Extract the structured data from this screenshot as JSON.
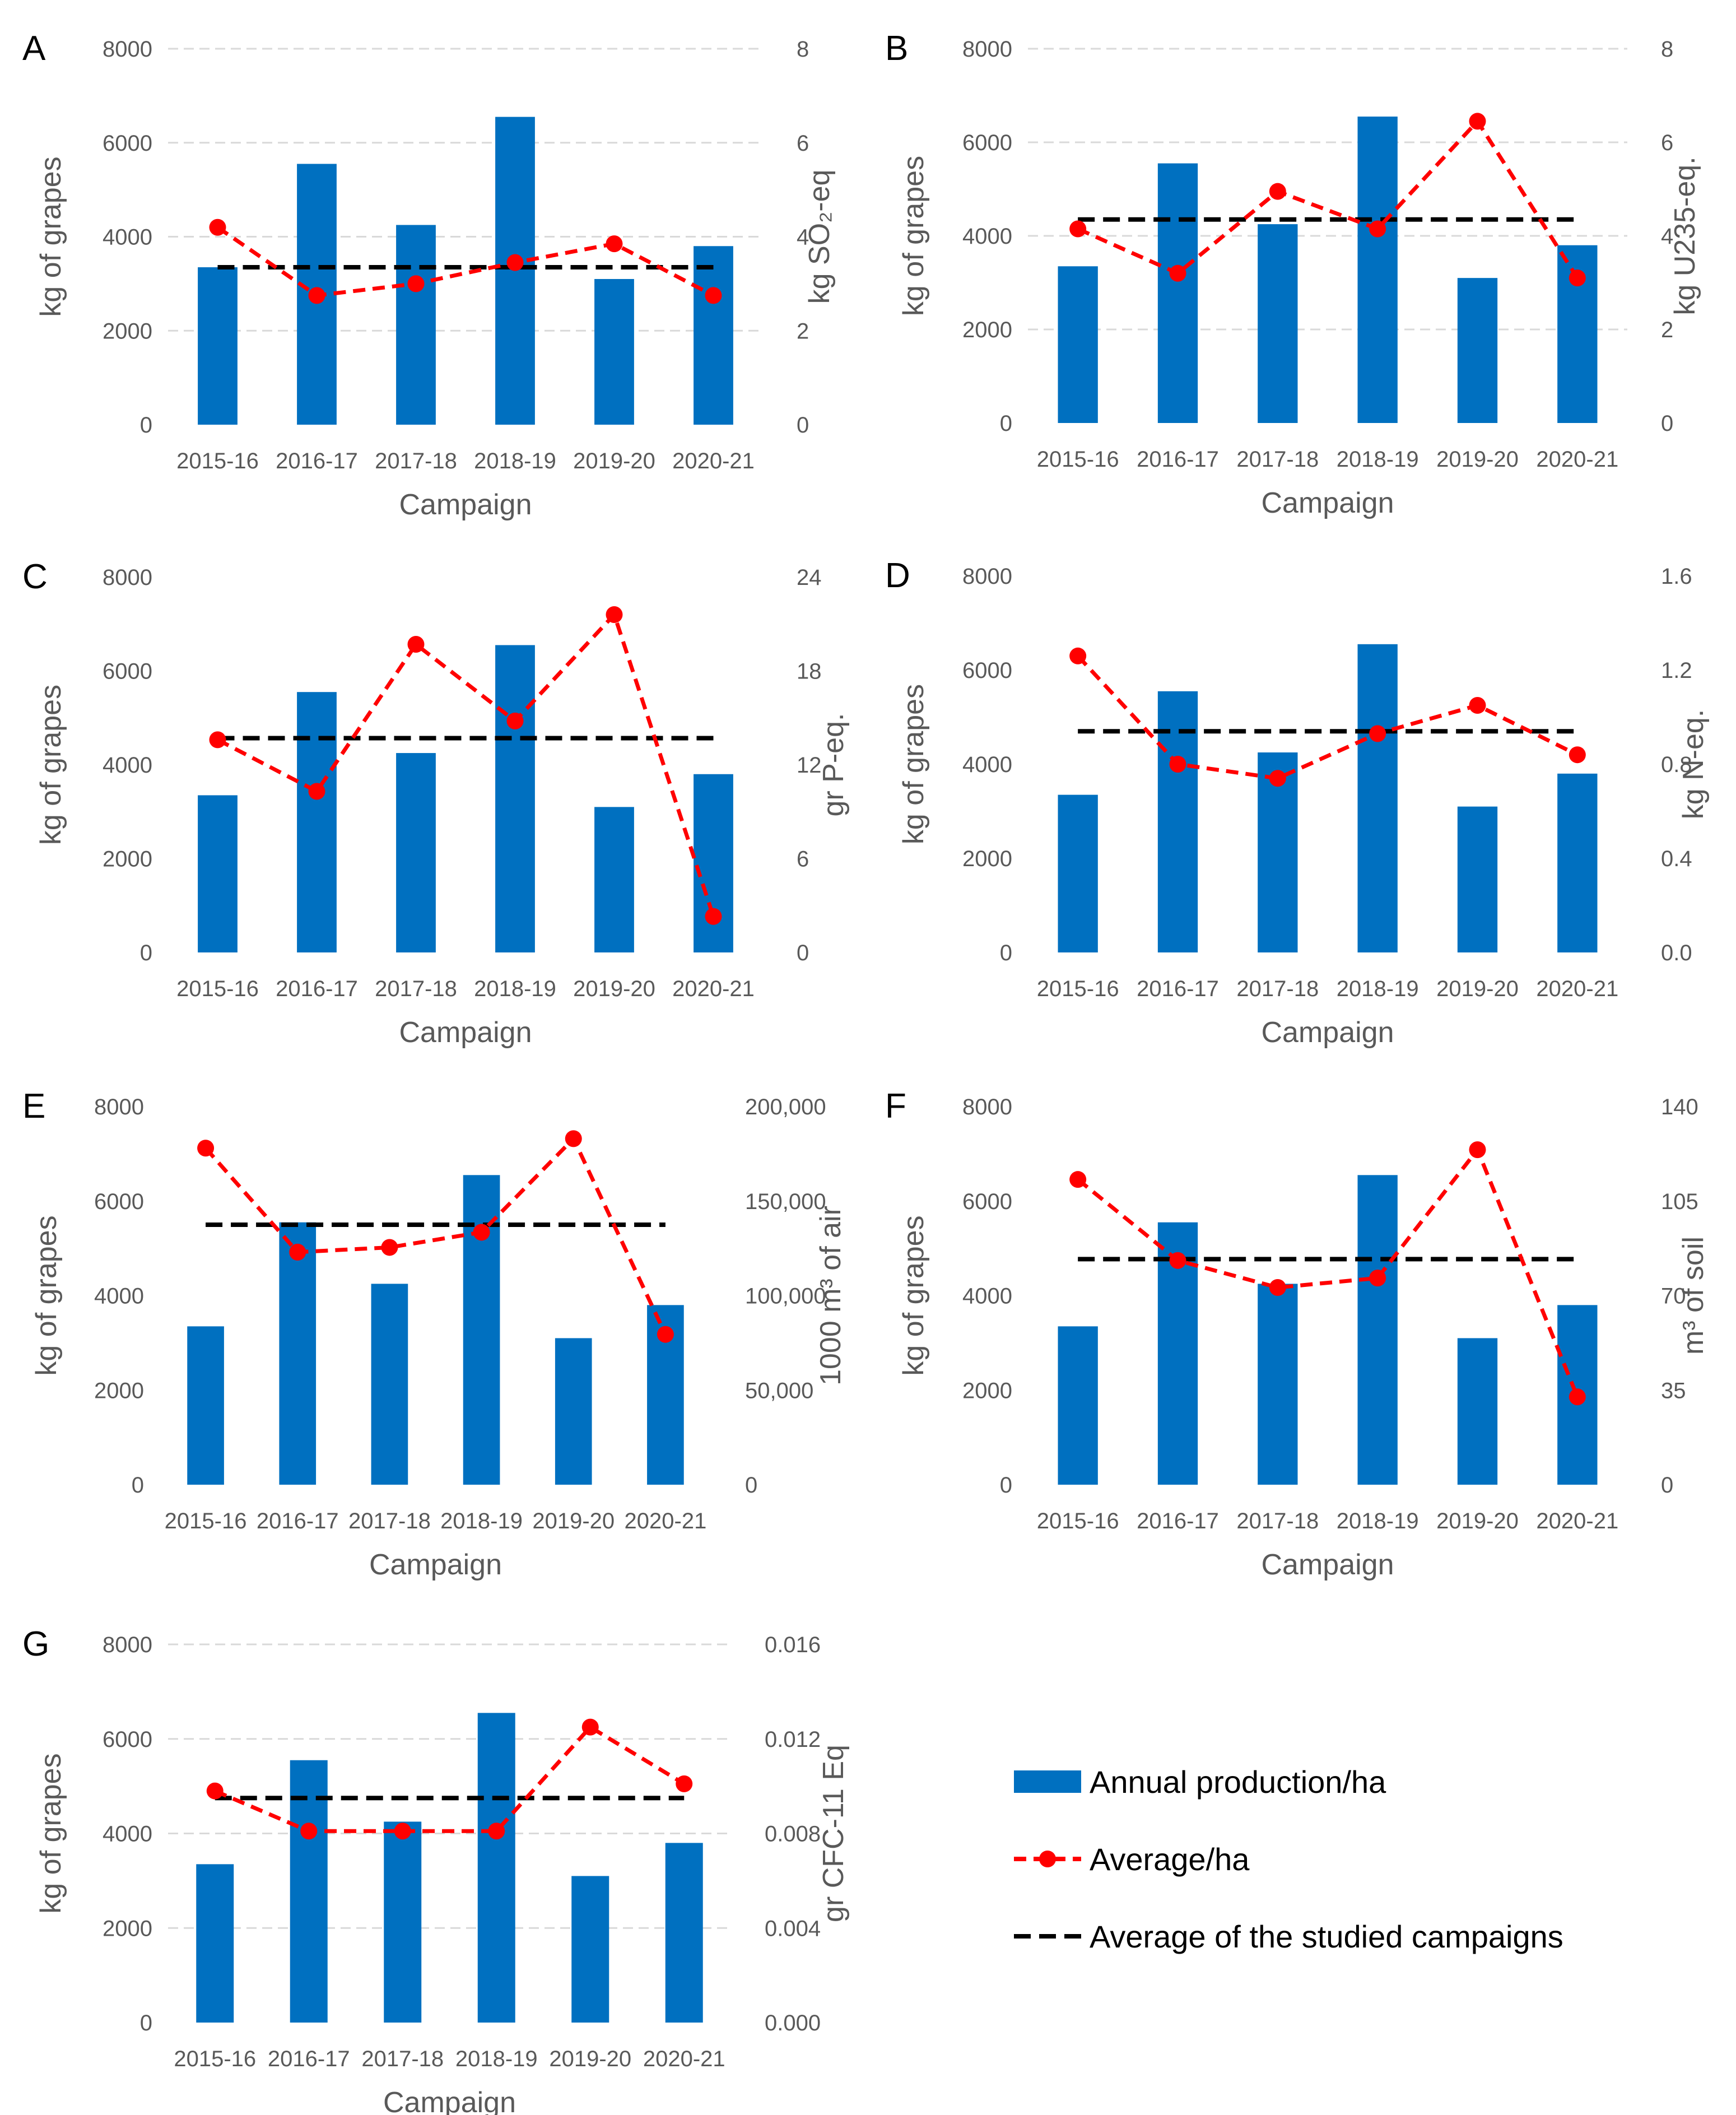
{
  "colors": {
    "bar": "#0070C0",
    "average": "#FF0000",
    "overall": "#000000",
    "grid": "#D9D9D9",
    "text": "#595959"
  },
  "legend": {
    "annual_production": "Annual production/ha",
    "average": "Average/ha",
    "overall_average": "Average of the studied campaigns"
  },
  "chart_data": [
    {
      "panel": "A",
      "type": "bar",
      "categories": [
        "2015-16",
        "2016-17",
        "2017-18",
        "2018-19",
        "2019-20",
        "2020-21"
      ],
      "xlabel": "Campaign",
      "ylabel": "kg of grapes",
      "y2label": "kg SO₂-eq",
      "ylim": [
        0,
        8000
      ],
      "yticks": [
        "0",
        "2000",
        "4000",
        "6000",
        "8000"
      ],
      "y2lim": [
        0,
        8
      ],
      "y2ticks": [
        "0",
        "2",
        "4",
        "6",
        "8"
      ],
      "grid": true,
      "series": [
        {
          "name": "Annual production/ha",
          "type": "bar",
          "axis": "left",
          "values": [
            3350,
            5550,
            4250,
            6550,
            3100,
            3800
          ]
        },
        {
          "name": "Average/ha",
          "type": "line",
          "axis": "right",
          "values": [
            4.2,
            2.75,
            3.0,
            3.45,
            3.85,
            2.75
          ]
        },
        {
          "name": "Average of the studied campaigns",
          "type": "hline",
          "axis": "right",
          "value": 3.35
        }
      ]
    },
    {
      "panel": "B",
      "type": "bar",
      "categories": [
        "2015-16",
        "2016-17",
        "2017-18",
        "2018-19",
        "2019-20",
        "2020-21"
      ],
      "xlabel": "Campaign",
      "ylabel": "kg of grapes",
      "y2label": "kg U235-eq.",
      "ylim": [
        0,
        8000
      ],
      "yticks": [
        "0",
        "2000",
        "4000",
        "6000",
        "8000"
      ],
      "y2lim": [
        0,
        8
      ],
      "y2ticks": [
        "0",
        "2",
        "4",
        "6",
        "8"
      ],
      "grid": true,
      "series": [
        {
          "name": "Annual production/ha",
          "type": "bar",
          "axis": "left",
          "values": [
            3350,
            5550,
            4250,
            6550,
            3100,
            3800
          ]
        },
        {
          "name": "Average/ha",
          "type": "line",
          "axis": "right",
          "values": [
            4.15,
            3.2,
            4.95,
            4.15,
            6.45,
            3.1
          ]
        },
        {
          "name": "Average of the studied campaigns",
          "type": "hline",
          "axis": "right",
          "value": 4.35
        }
      ]
    },
    {
      "panel": "C",
      "type": "bar",
      "categories": [
        "2015-16",
        "2016-17",
        "2017-18",
        "2018-19",
        "2019-20",
        "2020-21"
      ],
      "xlabel": "Campaign",
      "ylabel": "kg of grapes",
      "y2label": "gr P-eq.",
      "ylim": [
        0,
        8000
      ],
      "yticks": [
        "0",
        "2000",
        "4000",
        "6000",
        "8000"
      ],
      "y2lim": [
        0,
        24
      ],
      "y2ticks": [
        "0",
        "6",
        "12",
        "18",
        "24"
      ],
      "grid": false,
      "series": [
        {
          "name": "Annual production/ha",
          "type": "bar",
          "axis": "left",
          "values": [
            3350,
            5550,
            4250,
            6550,
            3100,
            3800
          ]
        },
        {
          "name": "Average/ha",
          "type": "line",
          "axis": "right",
          "values": [
            13.6,
            10.3,
            19.7,
            14.8,
            21.6,
            2.3
          ]
        },
        {
          "name": "Average of the studied campaigns",
          "type": "hline",
          "axis": "right",
          "value": 13.7
        }
      ]
    },
    {
      "panel": "D",
      "type": "bar",
      "categories": [
        "2015-16",
        "2016-17",
        "2017-18",
        "2018-19",
        "2019-20",
        "2020-21"
      ],
      "xlabel": "Campaign",
      "ylabel": "kg of grapes",
      "y2label": "kg N-eq.",
      "ylim": [
        0,
        8000
      ],
      "yticks": [
        "0",
        "2000",
        "4000",
        "6000",
        "8000"
      ],
      "y2lim": [
        0,
        1.6
      ],
      "y2ticks": [
        "0.0",
        "0.4",
        "0.8",
        "1.2",
        "1.6"
      ],
      "grid": false,
      "series": [
        {
          "name": "Annual production/ha",
          "type": "bar",
          "axis": "left",
          "values": [
            3350,
            5550,
            4250,
            6550,
            3100,
            3800
          ]
        },
        {
          "name": "Average/ha",
          "type": "line",
          "axis": "right",
          "values": [
            1.26,
            0.8,
            0.74,
            0.93,
            1.05,
            0.84
          ]
        },
        {
          "name": "Average of the studied campaigns",
          "type": "hline",
          "axis": "right",
          "value": 0.94
        }
      ]
    },
    {
      "panel": "E",
      "type": "bar",
      "categories": [
        "2015-16",
        "2016-17",
        "2017-18",
        "2018-19",
        "2019-20",
        "2020-21"
      ],
      "xlabel": "Campaign",
      "ylabel": "kg of grapes",
      "y2label": "1000 m³ of air",
      "ylim": [
        0,
        8000
      ],
      "yticks": [
        "0",
        "2000",
        "4000",
        "6000",
        "8000"
      ],
      "y2lim": [
        0,
        200000
      ],
      "y2ticks": [
        "0",
        "50,000",
        "100,000",
        "150,000",
        "200,000"
      ],
      "grid": false,
      "series": [
        {
          "name": "Annual production/ha",
          "type": "bar",
          "axis": "left",
          "values": [
            3350,
            5550,
            4250,
            6550,
            3100,
            3800
          ]
        },
        {
          "name": "Average/ha",
          "type": "line",
          "axis": "right",
          "values": [
            178000,
            123000,
            125500,
            133500,
            183000,
            79500
          ]
        },
        {
          "name": "Average of the studied campaigns",
          "type": "hline",
          "axis": "right",
          "value": 137500
        }
      ]
    },
    {
      "panel": "F",
      "type": "bar",
      "categories": [
        "2015-16",
        "2016-17",
        "2017-18",
        "2018-19",
        "2019-20",
        "2020-21"
      ],
      "xlabel": "Campaign",
      "ylabel": "kg of grapes",
      "y2label": "m³ of soil",
      "ylim": [
        0,
        8000
      ],
      "yticks": [
        "0",
        "2000",
        "4000",
        "6000",
        "8000"
      ],
      "y2lim": [
        0,
        140
      ],
      "y2ticks": [
        "0",
        "35",
        "70",
        "105",
        "140"
      ],
      "grid": false,
      "series": [
        {
          "name": "Annual production/ha",
          "type": "bar",
          "axis": "left",
          "values": [
            3350,
            5550,
            4250,
            6550,
            3100,
            3800
          ]
        },
        {
          "name": "Average/ha",
          "type": "line",
          "axis": "right",
          "values": [
            113,
            83,
            73,
            76.5,
            124,
            32.5
          ]
        },
        {
          "name": "Average of the studied campaigns",
          "type": "hline",
          "axis": "right",
          "value": 83.5
        }
      ]
    },
    {
      "panel": "G",
      "type": "bar",
      "categories": [
        "2015-16",
        "2016-17",
        "2017-18",
        "2018-19",
        "2019-20",
        "2020-21"
      ],
      "xlabel": "Campaign",
      "ylabel": "kg of grapes",
      "y2label": "gr CFC-11 Eq",
      "ylim": [
        0,
        8000
      ],
      "yticks": [
        "0",
        "2000",
        "4000",
        "6000",
        "8000"
      ],
      "y2lim": [
        0,
        0.016
      ],
      "y2ticks": [
        "0.000",
        "0.004",
        "0.008",
        "0.012",
        "0.016"
      ],
      "grid": true,
      "series": [
        {
          "name": "Annual production/ha",
          "type": "bar",
          "axis": "left",
          "values": [
            3350,
            5550,
            4250,
            6550,
            3100,
            3800
          ]
        },
        {
          "name": "Average/ha",
          "type": "line",
          "axis": "right",
          "values": [
            0.0098,
            0.0081,
            0.0081,
            0.0081,
            0.0125,
            0.0101
          ]
        },
        {
          "name": "Average of the studied campaigns",
          "type": "hline",
          "axis": "right",
          "value": 0.0095
        }
      ]
    }
  ]
}
